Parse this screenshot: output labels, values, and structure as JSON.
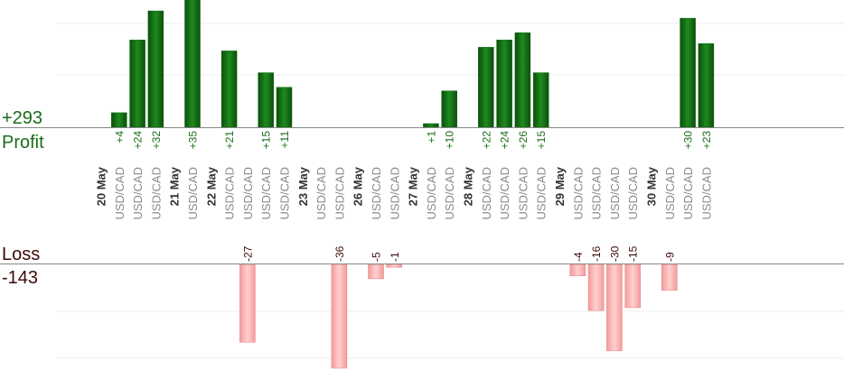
{
  "chart_data": {
    "type": "bar",
    "profit": {
      "total_label": "+293",
      "caption": "Profit",
      "scale_max": 35,
      "color": "#0f6b0f"
    },
    "loss": {
      "total_label": "-143",
      "caption": "Loss",
      "scale_max": 36,
      "color": "#ffb3b3"
    },
    "columns": [
      {
        "label": "20 May",
        "type": "date"
      },
      {
        "label": "USD/CAD",
        "type": "trade",
        "value": 4,
        "value_label": "+4"
      },
      {
        "label": "USD/CAD",
        "type": "trade",
        "value": 24,
        "value_label": "+24"
      },
      {
        "label": "USD/CAD",
        "type": "trade",
        "value": 32,
        "value_label": "+32"
      },
      {
        "label": "21 May",
        "type": "date"
      },
      {
        "label": "USD/CAD",
        "type": "trade",
        "value": 35,
        "value_label": "+35"
      },
      {
        "label": "22 May",
        "type": "date"
      },
      {
        "label": "USD/CAD",
        "type": "trade",
        "value": 21,
        "value_label": "+21"
      },
      {
        "label": "USD/CAD",
        "type": "trade",
        "value": -27,
        "value_label": "-27"
      },
      {
        "label": "USD/CAD",
        "type": "trade",
        "value": 15,
        "value_label": "+15"
      },
      {
        "label": "USD/CAD",
        "type": "trade",
        "value": 11,
        "value_label": "+11"
      },
      {
        "label": "23 May",
        "type": "date"
      },
      {
        "label": "USD/CAD",
        "type": "trade"
      },
      {
        "label": "USD/CAD",
        "type": "trade",
        "value": -36,
        "value_label": "-36"
      },
      {
        "label": "26 May",
        "type": "date"
      },
      {
        "label": "USD/CAD",
        "type": "trade",
        "value": -5,
        "value_label": "-5"
      },
      {
        "label": "USD/CAD",
        "type": "trade",
        "value": -1,
        "value_label": "-1"
      },
      {
        "label": "27 May",
        "type": "date"
      },
      {
        "label": "USD/CAD",
        "type": "trade",
        "value": 1,
        "value_label": "+1"
      },
      {
        "label": "USD/CAD",
        "type": "trade",
        "value": 10,
        "value_label": "+10"
      },
      {
        "label": "28 May",
        "type": "date"
      },
      {
        "label": "USD/CAD",
        "type": "trade",
        "value": 22,
        "value_label": "+22"
      },
      {
        "label": "USD/CAD",
        "type": "trade",
        "value": 24,
        "value_label": "+24"
      },
      {
        "label": "USD/CAD",
        "type": "trade",
        "value": 26,
        "value_label": "+26"
      },
      {
        "label": "USD/CAD",
        "type": "trade",
        "value": 15,
        "value_label": "+15"
      },
      {
        "label": "29 May",
        "type": "date"
      },
      {
        "label": "USD/CAD",
        "type": "trade",
        "value": -4,
        "value_label": "-4"
      },
      {
        "label": "USD/CAD",
        "type": "trade",
        "value": -16,
        "value_label": "-16"
      },
      {
        "label": "USD/CAD",
        "type": "trade",
        "value": -30,
        "value_label": "-30"
      },
      {
        "label": "USD/CAD",
        "type": "trade",
        "value": -15,
        "value_label": "-15"
      },
      {
        "label": "30 May",
        "type": "date"
      },
      {
        "label": "USD/CAD",
        "type": "trade",
        "value": -9,
        "value_label": "-9"
      },
      {
        "label": "USD/CAD",
        "type": "trade",
        "value": 30,
        "value_label": "+30"
      },
      {
        "label": "USD/CAD",
        "type": "trade",
        "value": 23,
        "value_label": "+23"
      }
    ]
  }
}
